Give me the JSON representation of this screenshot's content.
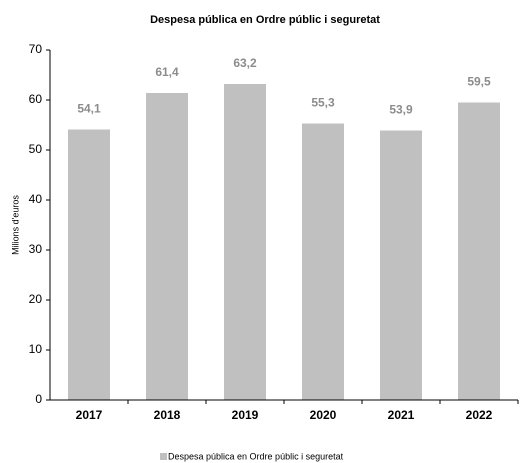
{
  "chart_data": {
    "type": "bar",
    "title": "Despesa pública en Ordre públic i seguretat",
    "y_label": "Milions d'euros",
    "categories": [
      "2017",
      "2018",
      "2019",
      "2020",
      "2021",
      "2022"
    ],
    "series": [
      {
        "name": "Despesa pública en Ordre públic i seguretat",
        "color": "#c0c0c0",
        "values": [
          54.1,
          61.4,
          63.2,
          55.3,
          53.9,
          59.5
        ],
        "value_labels": [
          "54,1",
          "61,4",
          "63,2",
          "55,3",
          "53,9",
          "59,5"
        ]
      }
    ],
    "ylim": [
      0,
      70
    ],
    "yticks": [
      0,
      10,
      20,
      30,
      40,
      50,
      60,
      70
    ],
    "grid": false,
    "legend": "bottom"
  }
}
